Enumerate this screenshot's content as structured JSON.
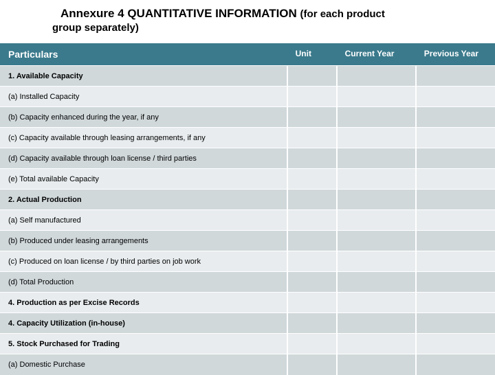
{
  "header": {
    "annexure": "Annexure 4",
    "title": "QUANTITATIVE INFORMATION",
    "note": "(for each product",
    "subtitle": "group separately)"
  },
  "table": {
    "columns": [
      "Particulars",
      "Unit",
      "Current Year",
      "Previous Year"
    ],
    "column_widths": [
      "58%",
      "10%",
      "16%",
      "16%"
    ],
    "header_bg": "#3b7a8c",
    "header_fg": "#ffffff",
    "row_bg_odd": "#d0d8da",
    "row_bg_even": "#e8ecee",
    "rows": [
      {
        "label": "1. Available Capacity",
        "bold": true,
        "unit": "",
        "current": "",
        "previous": ""
      },
      {
        "label": "(a) Installed Capacity",
        "bold": false,
        "unit": "",
        "current": "",
        "previous": ""
      },
      {
        "label": "(b) Capacity enhanced during the year, if any",
        "bold": false,
        "unit": "",
        "current": "",
        "previous": ""
      },
      {
        "label": "(c) Capacity available through leasing arrangements, if any",
        "bold": false,
        "unit": "",
        "current": "",
        "previous": ""
      },
      {
        "label": "(d) Capacity available through loan license / third parties",
        "bold": false,
        "unit": "",
        "current": "",
        "previous": ""
      },
      {
        "label": "(e) Total available Capacity",
        "bold": false,
        "unit": "",
        "current": "",
        "previous": ""
      },
      {
        "label": "2. Actual Production",
        "bold": true,
        "unit": "",
        "current": "",
        "previous": ""
      },
      {
        "label": "(a) Self manufactured",
        "bold": false,
        "unit": "",
        "current": "",
        "previous": ""
      },
      {
        "label": "(b) Produced under leasing arrangements",
        "bold": false,
        "unit": "",
        "current": "",
        "previous": ""
      },
      {
        "label": "(c) Produced on loan license / by third parties on job work",
        "bold": false,
        "unit": "",
        "current": "",
        "previous": ""
      },
      {
        "label": "(d) Total Production",
        "bold": false,
        "unit": "",
        "current": "",
        "previous": ""
      },
      {
        "label": "4. Production as per Excise Records",
        "bold": true,
        "unit": "",
        "current": "",
        "previous": ""
      },
      {
        "label": "4. Capacity Utilization (in-house)",
        "bold": true,
        "unit": "",
        "current": "",
        "previous": ""
      },
      {
        "label": "5. Stock Purchased for Trading",
        "bold": true,
        "unit": "",
        "current": "",
        "previous": ""
      },
      {
        "label": "(a) Domestic Purchase",
        "bold": false,
        "unit": "",
        "current": "",
        "previous": ""
      }
    ]
  }
}
